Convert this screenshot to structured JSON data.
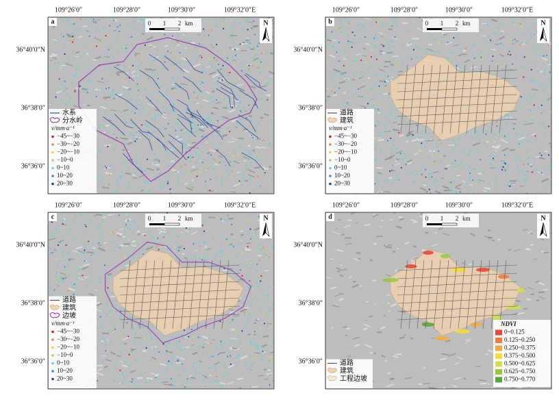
{
  "panels": [
    {
      "label": "a",
      "lon": [
        "109°26′0″",
        "109°28′0″",
        "109°30′0″",
        "109°32′0″E"
      ],
      "lat": [
        "36°40′0″N",
        "36°38′0″",
        "36°36′0″"
      ],
      "scale": [
        "0",
        "1",
        "2",
        "km"
      ],
      "north": "N",
      "shape": "watershed",
      "legend": [
        {
          "label": "水系",
          "symbol": "line",
          "color": "#2b4ea3"
        },
        {
          "label": "分水岭",
          "symbol": "outline",
          "color": "#9a40b5"
        }
      ],
      "class_title": "v/mm·a⁻¹",
      "class_corner": "bottom-left",
      "classes": [
        {
          "label": "−45~−30",
          "color": "#d7191c"
        },
        {
          "label": "−30~−20",
          "color": "#f08a2c"
        },
        {
          "label": "−20~−10",
          "color": "#e6d83a"
        },
        {
          "label": "−10~0",
          "color": "#a6d96a"
        },
        {
          "label": "0~10",
          "color": "#5fd3d8"
        },
        {
          "label": "10~20",
          "color": "#3a8ad1"
        },
        {
          "label": "20~30",
          "color": "#1f3f9e"
        }
      ]
    },
    {
      "label": "b",
      "lon": [
        "109°26′0″",
        "109°28′0″",
        "109°30′0″",
        "109°32′0″E"
      ],
      "lat": [
        "36°40′0″N",
        "36°38′0″",
        "36°36′0″"
      ],
      "scale": [
        "0",
        "1",
        "2",
        "km"
      ],
      "north": "N",
      "shape": "town",
      "legend": [
        {
          "label": "道路",
          "symbol": "line",
          "color": "#555555"
        },
        {
          "label": "建筑",
          "symbol": "fill",
          "color": "#f1d3b0"
        }
      ],
      "class_title": "v/mm·a⁻¹",
      "class_corner": "bottom-left",
      "classes": [
        {
          "label": "−45~−30",
          "color": "#d7191c"
        },
        {
          "label": "−30~−20",
          "color": "#f08a2c"
        },
        {
          "label": "−20~−10",
          "color": "#e6d83a"
        },
        {
          "label": "−10~0",
          "color": "#a6d96a"
        },
        {
          "label": "0~10",
          "color": "#5fd3d8"
        },
        {
          "label": "10~20",
          "color": "#3a8ad1"
        },
        {
          "label": "20~30",
          "color": "#1f3f9e"
        }
      ]
    },
    {
      "label": "c",
      "lon": [
        "109°26′0″",
        "109°28′0″",
        "109°30′0″",
        "109°32′0″E"
      ],
      "lat": [
        "36°40′0″N",
        "36°38′0″",
        "36°36′0″"
      ],
      "scale": [
        "0",
        "1",
        "2",
        "km"
      ],
      "north": "N",
      "shape": "town-slope",
      "legend": [
        {
          "label": "道路",
          "symbol": "line",
          "color": "#555555"
        },
        {
          "label": "建筑",
          "symbol": "fill",
          "color": "#f1d3b0"
        },
        {
          "label": "边坡",
          "symbol": "outline",
          "color": "#9a40b5"
        }
      ],
      "class_title": "v/mm·a⁻¹",
      "class_corner": "bottom-left",
      "classes": [
        {
          "label": "−45~−30",
          "color": "#d7191c"
        },
        {
          "label": "−30~−20",
          "color": "#f08a2c"
        },
        {
          "label": "−20~−10",
          "color": "#e6d83a"
        },
        {
          "label": "−10~0",
          "color": "#a6d96a"
        },
        {
          "label": "0~10",
          "color": "#5fd3d8"
        },
        {
          "label": "10~20",
          "color": "#3a8ad1"
        },
        {
          "label": "20~30",
          "color": "#1f3f9e"
        }
      ]
    },
    {
      "label": "d",
      "lon": [
        "109°26′0″",
        "109°28′0″",
        "109°30′0″",
        "109°32′0″E"
      ],
      "lat": [
        "36°40′0″N",
        "36°38′0″",
        "36°36′0″"
      ],
      "scale": [
        "0",
        "1",
        "2",
        "km"
      ],
      "north": "N",
      "shape": "ndvi",
      "legend": [
        {
          "label": "道路",
          "symbol": "line",
          "color": "#555555"
        },
        {
          "label": "建筑",
          "symbol": "fill",
          "color": "#f1d3b0"
        },
        {
          "label": "工程边坡",
          "symbol": "fill",
          "color": "#f6ead2"
        }
      ],
      "class_title": "NDVI",
      "class_corner": "bottom-right",
      "classes": [
        {
          "label": "0~0.125",
          "color": "#e8473a"
        },
        {
          "label": "0.125~0.250",
          "color": "#f47a3a"
        },
        {
          "label": "0.250~0.375",
          "color": "#f9a93d"
        },
        {
          "label": "0.375~0.500",
          "color": "#f5dc3a"
        },
        {
          "label": "0.500~0.625",
          "color": "#cfe04a"
        },
        {
          "label": "0.625~0.750",
          "color": "#97c93f"
        },
        {
          "label": "0.750~0.770",
          "color": "#56a83a"
        }
      ]
    }
  ]
}
